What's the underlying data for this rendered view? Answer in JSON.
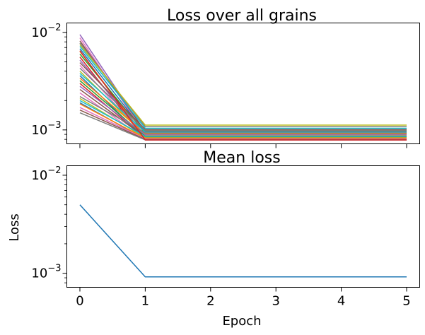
{
  "chart_data": [
    {
      "type": "line",
      "title": "Loss over all grains",
      "xlabel": "",
      "ylabel": "",
      "yscale": "log",
      "xlim": [
        -0.2,
        5.2
      ],
      "ylim": [
        0.00072,
        0.0125
      ],
      "x": [
        0,
        1,
        2,
        3,
        4,
        5
      ],
      "x_ticks_labeled": false,
      "y_ticks": [
        {
          "value": 0.01,
          "base": "10",
          "exp": "−2"
        },
        {
          "value": 0.001,
          "base": "10",
          "exp": "−3"
        }
      ],
      "series": [
        {
          "color": "#9467bd",
          "values": [
            0.0095,
            0.00095,
            0.00095,
            0.00095,
            0.00095,
            0.00095
          ]
        },
        {
          "color": "#e377c2",
          "values": [
            0.0088,
            0.0009,
            0.0009,
            0.0009,
            0.0009,
            0.0009
          ]
        },
        {
          "color": "#8c564b",
          "values": [
            0.0082,
            0.00097,
            0.00097,
            0.00097,
            0.00097,
            0.00097
          ]
        },
        {
          "color": "#7f7f7f",
          "values": [
            0.0078,
            0.00108,
            0.00108,
            0.00108,
            0.00108,
            0.00108
          ]
        },
        {
          "color": "#bcbd22",
          "values": [
            0.0075,
            0.00112,
            0.00112,
            0.00112,
            0.00112,
            0.00112
          ]
        },
        {
          "color": "#17becf",
          "values": [
            0.0072,
            0.00104,
            0.00104,
            0.00104,
            0.00104,
            0.00104
          ]
        },
        {
          "color": "#1f77b4",
          "values": [
            0.0068,
            0.00094,
            0.00094,
            0.00094,
            0.00094,
            0.00094
          ]
        },
        {
          "color": "#ff7f0e",
          "values": [
            0.0064,
            0.00085,
            0.00085,
            0.00085,
            0.00085,
            0.00085
          ]
        },
        {
          "color": "#2ca02c",
          "values": [
            0.006,
            0.00092,
            0.00092,
            0.00092,
            0.00092,
            0.00092
          ]
        },
        {
          "color": "#d62728",
          "values": [
            0.0056,
            0.00079,
            0.00079,
            0.00079,
            0.00079,
            0.00079
          ]
        },
        {
          "color": "#9467bd",
          "values": [
            0.0052,
            0.00088,
            0.00088,
            0.00088,
            0.00088,
            0.00088
          ]
        },
        {
          "color": "#8c564b",
          "values": [
            0.0049,
            0.00101,
            0.00101,
            0.00101,
            0.00101,
            0.00101
          ]
        },
        {
          "color": "#e377c2",
          "values": [
            0.0046,
            0.00083,
            0.00083,
            0.00083,
            0.00083,
            0.00083
          ]
        },
        {
          "color": "#7f7f7f",
          "values": [
            0.0043,
            0.00099,
            0.00099,
            0.00099,
            0.00099,
            0.00099
          ]
        },
        {
          "color": "#bcbd22",
          "values": [
            0.004,
            0.00087,
            0.00087,
            0.00087,
            0.00087,
            0.00087
          ]
        },
        {
          "color": "#17becf",
          "values": [
            0.0038,
            0.00095,
            0.00095,
            0.00095,
            0.00095,
            0.00095
          ]
        },
        {
          "color": "#1f77b4",
          "values": [
            0.0036,
            0.00081,
            0.00081,
            0.00081,
            0.00081,
            0.00081
          ]
        },
        {
          "color": "#ff7f0e",
          "values": [
            0.0034,
            0.00091,
            0.00091,
            0.00091,
            0.00091,
            0.00091
          ]
        },
        {
          "color": "#2ca02c",
          "values": [
            0.0032,
            0.00086,
            0.00086,
            0.00086,
            0.00086,
            0.00086
          ]
        },
        {
          "color": "#d62728",
          "values": [
            0.003,
            0.00082,
            0.00082,
            0.00082,
            0.00082,
            0.00082
          ]
        },
        {
          "color": "#9467bd",
          "values": [
            0.0028,
            0.00089,
            0.00089,
            0.00089,
            0.00089,
            0.00089
          ]
        },
        {
          "color": "#8c564b",
          "values": [
            0.0026,
            0.00084,
            0.00084,
            0.00084,
            0.00084,
            0.00084
          ]
        },
        {
          "color": "#e377c2",
          "values": [
            0.0024,
            0.0008,
            0.0008,
            0.0008,
            0.0008,
            0.0008
          ]
        },
        {
          "color": "#7f7f7f",
          "values": [
            0.0022,
            0.00093,
            0.00093,
            0.00093,
            0.00093,
            0.00093
          ]
        },
        {
          "color": "#bcbd22",
          "values": [
            0.0021,
            0.00083,
            0.00083,
            0.00083,
            0.00083,
            0.00083
          ]
        },
        {
          "color": "#17becf",
          "values": [
            0.002,
            0.00086,
            0.00086,
            0.00086,
            0.00086,
            0.00086
          ]
        },
        {
          "color": "#1f77b4",
          "values": [
            0.0019,
            0.0008,
            0.0008,
            0.0008,
            0.0008,
            0.0008
          ]
        },
        {
          "color": "#ff7f0e",
          "values": [
            0.00185,
            0.00082,
            0.00082,
            0.00082,
            0.00082,
            0.00082
          ]
        },
        {
          "color": "#e377c2",
          "values": [
            0.0017,
            0.00081,
            0.00081,
            0.00081,
            0.00081,
            0.00081
          ]
        },
        {
          "color": "#8c564b",
          "values": [
            0.0016,
            0.0008,
            0.0008,
            0.0008,
            0.0008,
            0.0008
          ]
        },
        {
          "color": "#7f7f7f",
          "values": [
            0.0015,
            0.00079,
            0.00079,
            0.00079,
            0.00079,
            0.00079
          ]
        },
        {
          "color": "#d62728",
          "values": [
            0.0065,
            0.00079,
            0.00079,
            0.00079,
            0.00079,
            0.00079
          ]
        }
      ]
    },
    {
      "type": "line",
      "title": "Mean loss",
      "xlabel": "Epoch",
      "ylabel": "Loss",
      "yscale": "log",
      "xlim": [
        -0.2,
        5.2
      ],
      "ylim": [
        0.00072,
        0.0125
      ],
      "x": [
        0,
        1,
        2,
        3,
        4,
        5
      ],
      "x_ticks": [
        "0",
        "1",
        "2",
        "3",
        "4",
        "5"
      ],
      "y_ticks": [
        {
          "value": 0.01,
          "base": "10",
          "exp": "−2"
        },
        {
          "value": 0.001,
          "base": "10",
          "exp": "−3"
        }
      ],
      "series": [
        {
          "color": "#1f77b4",
          "values": [
            0.005,
            0.00092,
            0.00092,
            0.00092,
            0.00092,
            0.00092
          ]
        }
      ]
    }
  ]
}
